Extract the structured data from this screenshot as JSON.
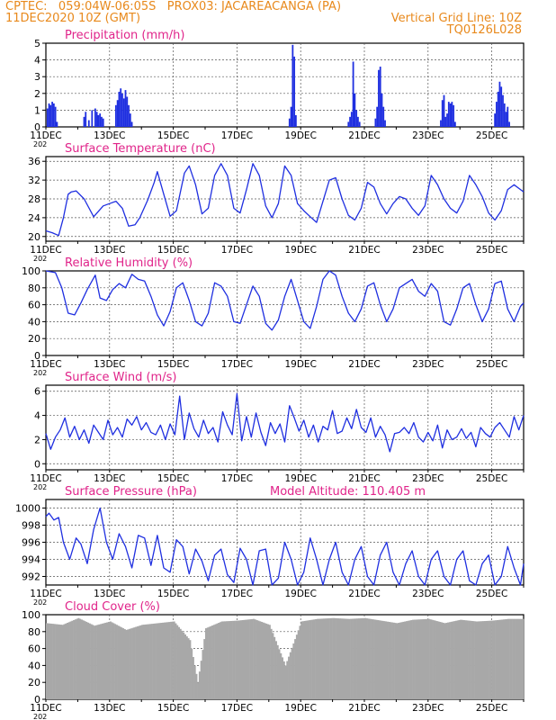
{
  "header": {
    "line1": "CPTEC:   059:04W-06:05S   PROX03: JACAREACANGA (PA)",
    "line2_left": "11DEC2020 10Z (GMT)",
    "line2_right": "Vertical Grid Line: 10Z",
    "line3_right": "TQ0126L028"
  },
  "colors": {
    "header": "#e8891c",
    "panel_title": "#e0248a",
    "series": "#1f2fe0",
    "cloud_bars": "#a8a8a8",
    "grid": "#555555"
  },
  "x_axis": {
    "tick_labels": [
      "11DEC",
      "13DEC",
      "15DEC",
      "17DEC",
      "19DEC",
      "21DEC",
      "23DEC",
      "25DEC"
    ],
    "secondary_label": "202",
    "range_days": [
      0,
      15
    ]
  },
  "chart_data": [
    {
      "type": "bar",
      "title": "Precipitation (mm/h)",
      "ylim": [
        0,
        5
      ],
      "yticks": [
        0,
        1,
        2,
        3,
        4,
        5
      ],
      "x_unit": "days since 11DEC 10Z",
      "x": [
        0.05,
        0.1,
        0.15,
        0.2,
        0.25,
        0.3,
        0.35,
        1.2,
        1.25,
        1.35,
        1.45,
        1.55,
        1.6,
        1.65,
        1.7,
        1.75,
        1.8,
        2.2,
        2.25,
        2.3,
        2.35,
        2.4,
        2.45,
        2.5,
        2.55,
        2.6,
        2.65,
        2.7,
        7.65,
        7.7,
        7.75,
        7.8,
        7.85,
        9.5,
        9.55,
        9.6,
        9.65,
        9.7,
        9.75,
        9.8,
        9.85,
        10.35,
        10.4,
        10.45,
        10.5,
        10.55,
        10.6,
        10.65,
        12.4,
        12.45,
        12.5,
        12.55,
        12.6,
        12.65,
        12.7,
        12.75,
        12.8,
        12.85,
        14.1,
        14.15,
        14.2,
        14.25,
        14.3,
        14.35,
        14.4,
        14.45,
        14.5,
        14.55
      ],
      "values": [
        1.1,
        1.4,
        1.3,
        1.5,
        1.4,
        1.2,
        0.3,
        0.6,
        0.9,
        0.4,
        1.0,
        1.1,
        0.9,
        0.7,
        0.8,
        0.6,
        0.5,
        1.3,
        1.6,
        2.1,
        2.3,
        2.0,
        1.7,
        2.2,
        1.8,
        1.3,
        0.8,
        0.3,
        0.5,
        1.2,
        4.9,
        4.2,
        0.7,
        0.3,
        0.6,
        0.9,
        3.9,
        2.0,
        1.0,
        0.6,
        0.3,
        0.5,
        1.2,
        3.4,
        3.6,
        2.0,
        1.2,
        0.4,
        0.4,
        1.6,
        1.9,
        0.6,
        0.8,
        1.5,
        1.4,
        1.5,
        1.3,
        0.3,
        0.8,
        1.5,
        2.1,
        2.7,
        2.4,
        1.9,
        1.4,
        0.9,
        1.2,
        0.3
      ]
    },
    {
      "type": "line",
      "title": "Surface Temperature (nC)",
      "ylim": [
        19,
        37
      ],
      "yticks": [
        20,
        24,
        28,
        32,
        36
      ],
      "x_unit": "days since 11DEC 10Z",
      "x": [
        0,
        0.2,
        0.4,
        0.55,
        0.7,
        0.8,
        0.95,
        1.2,
        1.5,
        1.8,
        2.0,
        2.2,
        2.4,
        2.6,
        2.8,
        2.95,
        3.2,
        3.4,
        3.5,
        3.7,
        3.9,
        4.1,
        4.35,
        4.5,
        4.7,
        4.9,
        5.1,
        5.3,
        5.5,
        5.7,
        5.9,
        6.1,
        6.3,
        6.5,
        6.7,
        6.9,
        7.1,
        7.3,
        7.5,
        7.7,
        7.9,
        8.1,
        8.3,
        8.5,
        8.7,
        8.9,
        9.1,
        9.3,
        9.5,
        9.7,
        9.9,
        10.1,
        10.3,
        10.5,
        10.7,
        10.9,
        11.1,
        11.3,
        11.5,
        11.7,
        11.9,
        12.1,
        12.3,
        12.5,
        12.7,
        12.9,
        13.1,
        13.3,
        13.5,
        13.7,
        13.9,
        14.1,
        14.3,
        14.5,
        14.7,
        14.9,
        15.0
      ],
      "values": [
        21.2,
        20.8,
        20.2,
        24.0,
        29.0,
        29.5,
        29.7,
        28.0,
        24.2,
        26.5,
        27.0,
        27.5,
        26.0,
        22.2,
        22.5,
        24.0,
        27.8,
        31.5,
        33.8,
        29.0,
        24.3,
        25.5,
        33.5,
        35.0,
        31.0,
        24.8,
        26.0,
        33.0,
        35.5,
        33.0,
        26.0,
        25.0,
        30.0,
        35.5,
        33.0,
        26.5,
        24.0,
        27.0,
        35.0,
        33.0,
        27.0,
        25.5,
        24.2,
        23.0,
        27.5,
        32.0,
        32.5,
        28.0,
        24.5,
        23.5,
        26.0,
        31.5,
        30.5,
        27.0,
        24.8,
        27.0,
        28.5,
        28.0,
        26.0,
        24.5,
        26.5,
        33.0,
        31.0,
        28.0,
        26.0,
        25.0,
        27.5,
        33.0,
        31.0,
        28.5,
        25.0,
        23.5,
        25.5,
        30.0,
        31.0,
        30.0,
        29.5
      ]
    },
    {
      "type": "line",
      "title": "Relative Humidity (%)",
      "ylim": [
        0,
        100
      ],
      "yticks": [
        0,
        20,
        40,
        60,
        80,
        100
      ],
      "x_unit": "days since 11DEC 10Z",
      "x": [
        0,
        0.3,
        0.5,
        0.7,
        0.9,
        1.1,
        1.3,
        1.55,
        1.7,
        1.9,
        2.1,
        2.3,
        2.5,
        2.7,
        2.9,
        3.1,
        3.3,
        3.5,
        3.7,
        3.9,
        4.1,
        4.3,
        4.5,
        4.7,
        4.9,
        5.1,
        5.3,
        5.5,
        5.7,
        5.9,
        6.1,
        6.3,
        6.5,
        6.7,
        6.9,
        7.1,
        7.3,
        7.5,
        7.7,
        7.9,
        8.1,
        8.3,
        8.5,
        8.7,
        8.9,
        9.1,
        9.3,
        9.5,
        9.7,
        9.9,
        10.1,
        10.3,
        10.5,
        10.7,
        10.9,
        11.1,
        11.3,
        11.5,
        11.7,
        11.9,
        12.1,
        12.3,
        12.5,
        12.7,
        12.9,
        13.1,
        13.3,
        13.5,
        13.7,
        13.9,
        14.1,
        14.3,
        14.5,
        14.7,
        14.9,
        15.0
      ],
      "values": [
        100,
        98,
        80,
        50,
        48,
        62,
        78,
        95,
        68,
        65,
        78,
        85,
        80,
        96,
        90,
        88,
        70,
        48,
        35,
        52,
        80,
        86,
        65,
        40,
        35,
        50,
        86,
        82,
        70,
        40,
        38,
        60,
        82,
        70,
        38,
        30,
        42,
        70,
        90,
        65,
        40,
        32,
        58,
        90,
        100,
        95,
        70,
        50,
        40,
        55,
        82,
        86,
        60,
        40,
        55,
        80,
        85,
        90,
        76,
        70,
        85,
        76,
        40,
        36,
        55,
        80,
        85,
        60,
        40,
        55,
        85,
        88,
        55,
        40,
        58,
        62
      ]
    },
    {
      "type": "line",
      "title": "Surface Wind (m/s)",
      "ylim": [
        -0.5,
        6.5
      ],
      "yticks": [
        0,
        2,
        4,
        6
      ],
      "x_unit": "days since 11DEC 10Z",
      "x": [
        0,
        0.15,
        0.3,
        0.45,
        0.6,
        0.75,
        0.9,
        1.05,
        1.2,
        1.35,
        1.5,
        1.65,
        1.8,
        1.95,
        2.1,
        2.25,
        2.4,
        2.55,
        2.7,
        2.85,
        3.0,
        3.15,
        3.3,
        3.45,
        3.6,
        3.75,
        3.9,
        4.05,
        4.2,
        4.35,
        4.5,
        4.65,
        4.8,
        4.95,
        5.1,
        5.25,
        5.4,
        5.55,
        5.7,
        5.85,
        6.0,
        6.15,
        6.3,
        6.45,
        6.6,
        6.75,
        6.9,
        7.05,
        7.2,
        7.35,
        7.5,
        7.65,
        7.8,
        7.95,
        8.1,
        8.25,
        8.4,
        8.55,
        8.7,
        8.85,
        9.0,
        9.15,
        9.3,
        9.45,
        9.6,
        9.75,
        9.9,
        10.05,
        10.2,
        10.35,
        10.5,
        10.65,
        10.8,
        10.95,
        11.1,
        11.25,
        11.4,
        11.55,
        11.7,
        11.85,
        12.0,
        12.15,
        12.3,
        12.45,
        12.6,
        12.75,
        12.9,
        13.05,
        13.2,
        13.35,
        13.5,
        13.65,
        13.8,
        13.95,
        14.1,
        14.25,
        14.4,
        14.55,
        14.7,
        14.85,
        15.0
      ],
      "values": [
        2.5,
        1.2,
        2.2,
        2.8,
        3.8,
        2.2,
        3.1,
        2.0,
        2.8,
        1.7,
        3.2,
        2.6,
        2.0,
        3.6,
        2.4,
        3.0,
        2.2,
        3.7,
        3.2,
        3.9,
        2.8,
        3.4,
        2.6,
        2.4,
        3.2,
        2.0,
        3.3,
        2.4,
        5.6,
        2.0,
        4.2,
        2.9,
        2.2,
        3.6,
        2.5,
        3.0,
        1.8,
        4.3,
        3.2,
        2.4,
        5.8,
        1.9,
        3.9,
        2.2,
        4.2,
        2.6,
        1.5,
        3.4,
        2.5,
        3.3,
        1.8,
        4.8,
        3.8,
        2.7,
        3.6,
        2.2,
        3.2,
        1.8,
        3.1,
        2.8,
        4.4,
        2.5,
        2.7,
        3.8,
        2.9,
        4.5,
        3.0,
        2.6,
        3.8,
        2.2,
        3.1,
        2.4,
        1.0,
        2.5,
        2.6,
        3.0,
        2.5,
        3.4,
        2.2,
        1.8,
        2.6,
        1.9,
        3.2,
        1.3,
        2.8,
        2.0,
        2.2,
        2.9,
        2.1,
        2.6,
        1.4,
        3.0,
        2.5,
        2.2,
        3.0,
        3.4,
        2.8,
        2.2,
        3.9,
        2.8,
        4.0
      ]
    },
    {
      "type": "line",
      "title": "Surface Pressure (hPa)",
      "annotation": "Model Altitude: 110.405 m",
      "ylim": [
        991,
        1001
      ],
      "yticks": [
        992,
        994,
        996,
        998,
        1000
      ],
      "x_unit": "days since 11DEC 10Z",
      "x": [
        0,
        0.1,
        0.25,
        0.4,
        0.55,
        0.75,
        0.95,
        1.1,
        1.3,
        1.5,
        1.7,
        1.9,
        2.1,
        2.3,
        2.5,
        2.7,
        2.9,
        3.1,
        3.3,
        3.5,
        3.7,
        3.9,
        4.1,
        4.3,
        4.5,
        4.7,
        4.9,
        5.1,
        5.3,
        5.5,
        5.7,
        5.9,
        6.1,
        6.3,
        6.5,
        6.7,
        6.9,
        7.1,
        7.3,
        7.5,
        7.7,
        7.9,
        8.1,
        8.3,
        8.5,
        8.7,
        8.9,
        9.1,
        9.3,
        9.5,
        9.7,
        9.9,
        10.1,
        10.3,
        10.5,
        10.7,
        10.9,
        11.1,
        11.3,
        11.5,
        11.7,
        11.9,
        12.1,
        12.3,
        12.5,
        12.7,
        12.9,
        13.1,
        13.3,
        13.5,
        13.7,
        13.9,
        14.1,
        14.3,
        14.5,
        14.7,
        14.9,
        15.0
      ],
      "values": [
        999.0,
        999.4,
        998.6,
        998.9,
        996.0,
        994.0,
        996.5,
        995.8,
        993.5,
        997.5,
        1000.0,
        996.0,
        994.0,
        997.0,
        995.5,
        993.0,
        996.8,
        996.5,
        993.3,
        996.8,
        993.0,
        992.5,
        996.3,
        995.5,
        992.3,
        995.2,
        993.8,
        991.5,
        994.5,
        995.2,
        992.2,
        991.3,
        995.3,
        994.0,
        991.0,
        995.0,
        995.2,
        991.0,
        991.8,
        996.0,
        994.0,
        991.0,
        992.5,
        996.5,
        994.0,
        991.0,
        994.0,
        996.0,
        992.5,
        991.0,
        994.0,
        995.5,
        992.0,
        991.0,
        994.5,
        996.0,
        992.5,
        991.0,
        993.5,
        995.0,
        992.0,
        991.0,
        994.0,
        995.0,
        992.0,
        991.0,
        994.0,
        995.0,
        991.5,
        991.0,
        993.5,
        994.5,
        991.0,
        992.0,
        995.5,
        993.0,
        991.0,
        993.5
      ]
    },
    {
      "type": "bar",
      "title": "Cloud Cover (%)",
      "ylim": [
        0,
        100
      ],
      "yticks": [
        0,
        20,
        40,
        60,
        80,
        100
      ],
      "x_unit": "days since 11DEC 10Z",
      "x": [
        0,
        0.5,
        1.0,
        1.5,
        2.0,
        2.5,
        3.0,
        3.5,
        4.0,
        4.5,
        4.75,
        5.0,
        5.5,
        6.0,
        6.5,
        7.0,
        7.5,
        8.0,
        8.5,
        9.0,
        9.5,
        10.0,
        10.5,
        11.0,
        11.5,
        12.0,
        12.5,
        13.0,
        13.5,
        14.0,
        14.5,
        15.0
      ],
      "values": [
        90,
        88,
        96,
        87,
        92,
        82,
        88,
        90,
        92,
        70,
        20,
        84,
        92,
        93,
        95,
        88,
        40,
        92,
        95,
        96,
        95,
        96,
        93,
        90,
        94,
        95,
        90,
        94,
        92,
        93,
        95,
        95
      ]
    }
  ]
}
